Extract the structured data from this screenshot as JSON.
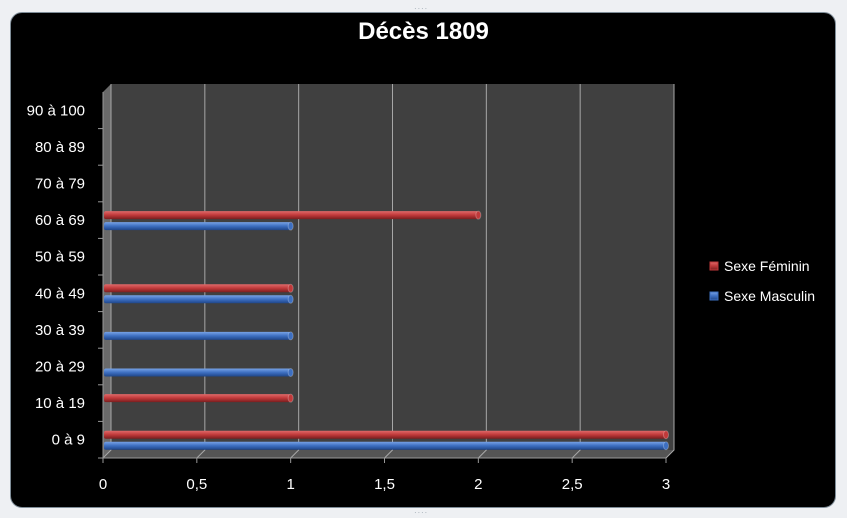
{
  "chart_data": {
    "type": "bar",
    "orientation": "horizontal",
    "title": "Décès 1809",
    "categories": [
      "0 à 9",
      "10 à 19",
      "20 à 29",
      "30 à 39",
      "40 à 49",
      "50 à 59",
      "60 à 69",
      "70 à 79",
      "80 à 89",
      "90 à 100"
    ],
    "series": [
      {
        "name": "Sexe Féminin",
        "values": [
          3,
          1,
          0,
          0,
          1,
          0,
          2,
          0,
          0,
          0
        ],
        "color": "#c0393a"
      },
      {
        "name": "Sexe Masculin",
        "values": [
          3,
          0,
          1,
          1,
          1,
          0,
          1,
          0,
          0,
          0
        ],
        "color": "#3d6fc1"
      }
    ],
    "xlim": [
      0,
      3
    ],
    "xticks": [
      "0",
      "0,5",
      "1",
      "1,5",
      "2",
      "2,5",
      "3"
    ],
    "xtick_values": [
      0,
      0.5,
      1,
      1.5,
      2,
      2.5,
      3
    ],
    "grid": true,
    "legend_position": "right",
    "plot_background": "#404040",
    "chart_background": "#000000"
  }
}
